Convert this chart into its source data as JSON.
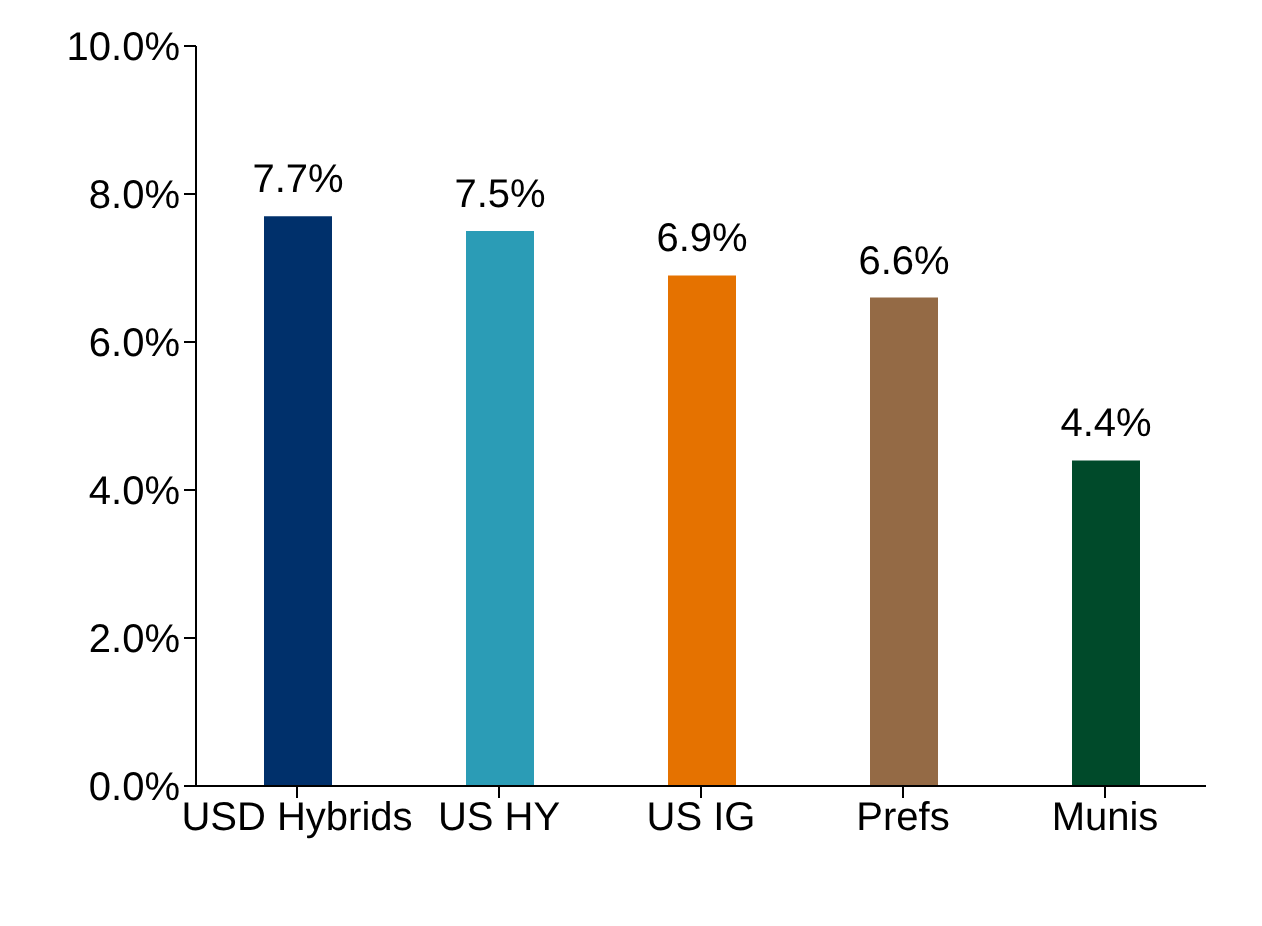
{
  "chart_data": {
    "type": "bar",
    "categories": [
      "USD Hybrids",
      "US HY",
      "US IG",
      "Prefs",
      "Munis"
    ],
    "values": [
      7.7,
      7.5,
      6.9,
      6.6,
      4.4
    ],
    "colors": [
      "#00306b",
      "#2b9cb6",
      "#e57200",
      "#946a45",
      "#004a2a"
    ],
    "value_labels": [
      "7.7%",
      "7.5%",
      "6.9%",
      "6.6%",
      "4.4%"
    ],
    "ylim": [
      0,
      10
    ],
    "yticks": [
      {
        "value": 0,
        "label": "0.0%"
      },
      {
        "value": 2,
        "label": "2.0%"
      },
      {
        "value": 4,
        "label": "4.0%"
      },
      {
        "value": 6,
        "label": "6.0%"
      },
      {
        "value": 8,
        "label": "8.0%"
      },
      {
        "value": 10,
        "label": "10.0%"
      }
    ],
    "grid": false,
    "legend": false
  }
}
